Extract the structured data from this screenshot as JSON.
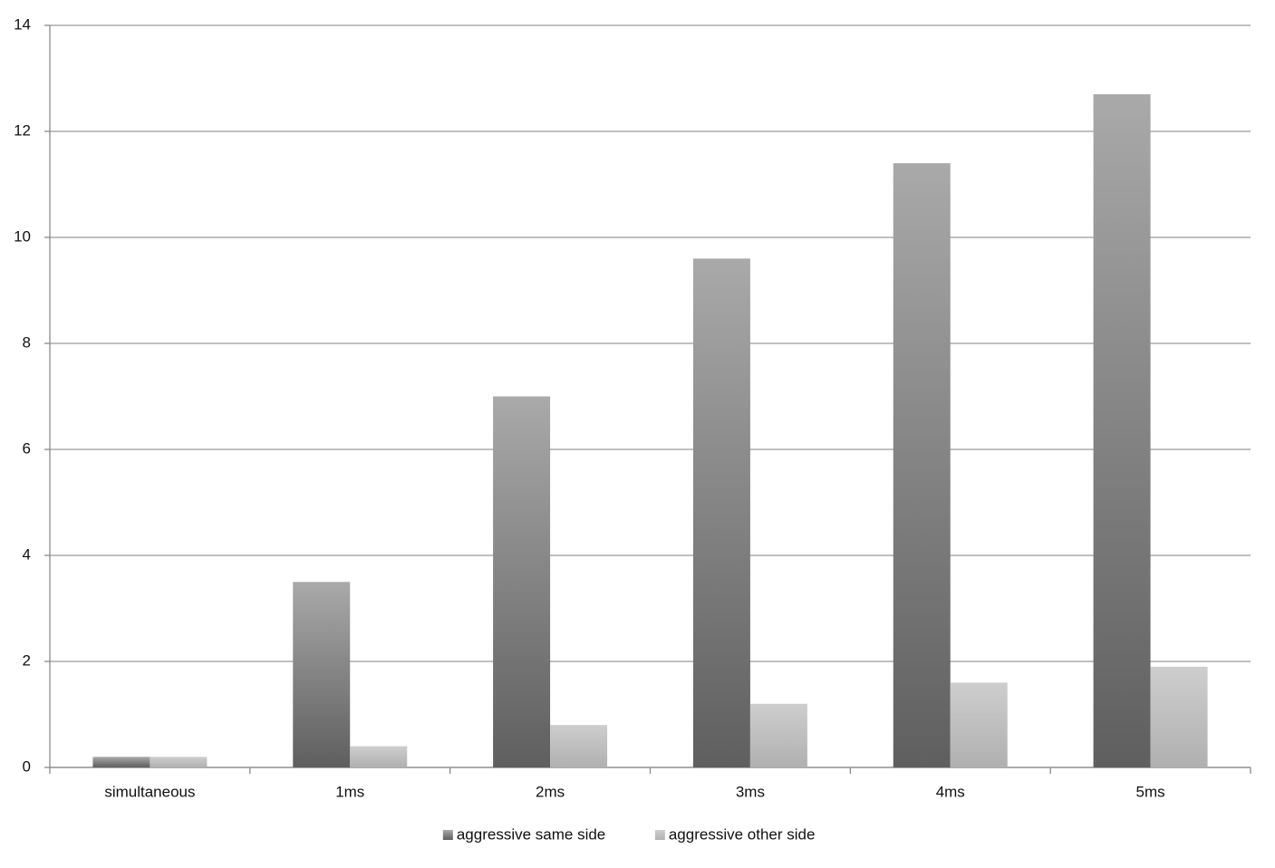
{
  "chart_data": {
    "type": "bar",
    "categories": [
      "simultaneous",
      "1ms",
      "2ms",
      "3ms",
      "4ms",
      "5ms"
    ],
    "series": [
      {
        "name": "aggressive same side",
        "color": "#5f5f5f",
        "values": [
          0.2,
          3.5,
          7.0,
          9.6,
          11.4,
          12.7
        ]
      },
      {
        "name": "aggressive other side",
        "color": "#b0b0b0",
        "values": [
          0.2,
          0.4,
          0.8,
          1.2,
          1.6,
          1.9
        ]
      }
    ],
    "ylim": [
      0,
      14
    ],
    "yticks": [
      0,
      2,
      4,
      6,
      8,
      10,
      12,
      14
    ],
    "grid": true,
    "legend": "bottom"
  }
}
